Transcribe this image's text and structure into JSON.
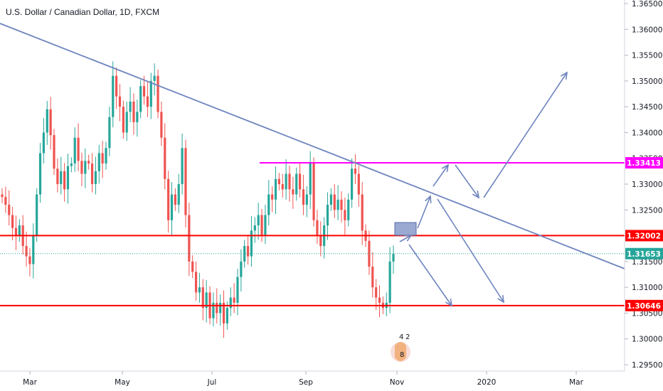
{
  "chart_data": {
    "type": "candlestick",
    "title": "U.S. Dollar / Canadian Dollar, 1D, FXCM",
    "ylim": [
      1.2935,
      1.3664
    ],
    "y_ticks": [
      "1.36500",
      "1.36000",
      "1.35500",
      "1.35000",
      "1.34500",
      "1.34000",
      "1.33500",
      "1.33000",
      "1.32500",
      "1.32000",
      "1.31500",
      "1.31000",
      "1.30500",
      "1.30000",
      "1.29500"
    ],
    "x_ticks": [
      "Mar",
      "May",
      "Jul",
      "Sep",
      "Nov",
      "2020",
      "Mar"
    ],
    "candles_close": [
      1.3275,
      1.326,
      1.324,
      1.3215,
      1.32,
      1.322,
      1.318,
      1.316,
      1.3145,
      1.32,
      1.328,
      1.336,
      1.34,
      1.3445,
      1.3395,
      1.333,
      1.33,
      1.3325,
      1.329,
      1.3335,
      1.334,
      1.339,
      1.3345,
      1.332,
      1.3345,
      1.334,
      1.33,
      1.3325,
      1.336,
      1.334,
      1.337,
      1.343,
      1.351,
      1.347,
      1.345,
      1.34,
      1.344,
      1.346,
      1.342,
      1.344,
      1.349,
      1.347,
      1.345,
      1.35,
      1.351,
      1.344,
      1.339,
      1.331,
      1.323,
      1.328,
      1.326,
      1.33,
      1.337,
      1.324,
      1.315,
      1.313,
      1.309,
      1.31,
      1.306,
      1.309,
      1.304,
      1.307,
      1.305,
      1.307,
      1.303,
      1.306,
      1.308,
      1.307,
      1.312,
      1.315,
      1.318,
      1.316,
      1.321,
      1.322,
      1.324,
      1.32,
      1.324,
      1.328,
      1.327,
      1.331,
      1.33,
      1.329,
      1.332,
      1.329,
      1.328,
      1.332,
      1.329,
      1.326,
      1.328,
      1.334,
      1.323,
      1.32,
      1.318,
      1.322,
      1.326,
      1.328,
      1.325,
      1.327,
      1.325,
      1.323,
      1.327,
      1.333,
      1.332,
      1.328,
      1.321,
      1.319,
      1.314,
      1.31,
      1.308,
      1.307,
      1.306,
      1.307,
      1.315,
      1.3165
    ],
    "horizontal_levels": [
      {
        "value": 1.33413,
        "label": "1.33413",
        "color": "#ff00ff"
      },
      {
        "value": 1.32002,
        "label": "1.32002",
        "color": "#ff0000"
      },
      {
        "value": 1.31653,
        "label": "1.31653",
        "color": "#26a69a"
      },
      {
        "value": 1.30646,
        "label": "1.30646",
        "color": "#ff0000"
      }
    ],
    "trendline_color": "#6e84bf",
    "up_color": "#26a69a",
    "down_color": "#ef5350",
    "logo_numbers": [
      "4",
      "2",
      "8"
    ]
  }
}
